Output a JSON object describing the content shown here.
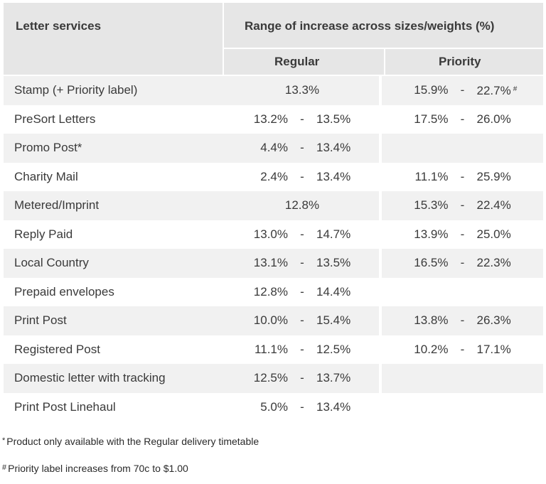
{
  "header": {
    "col1": "Letter services",
    "group": "Range of increase across sizes/weights (%)",
    "regular": "Regular",
    "priority": "Priority"
  },
  "rows": [
    {
      "name": "Stamp (+ Priority label)",
      "regular_single": "13.3%",
      "priority_lo": "15.9%",
      "priority_hi": "22.7%",
      "priority_mark": "#"
    },
    {
      "name": "PreSort Letters",
      "regular_lo": "13.2%",
      "regular_hi": "13.5%",
      "priority_lo": "17.5%",
      "priority_hi": "26.0%"
    },
    {
      "name": "Promo Post*",
      "regular_lo": "4.4%",
      "regular_hi": "13.4%"
    },
    {
      "name": "Charity Mail",
      "regular_lo": "2.4%",
      "regular_hi": "13.4%",
      "priority_lo": "11.1%",
      "priority_hi": "25.9%"
    },
    {
      "name": "Metered/Imprint",
      "regular_single": "12.8%",
      "priority_lo": "15.3%",
      "priority_hi": "22.4%"
    },
    {
      "name": "Reply Paid",
      "regular_lo": "13.0%",
      "regular_hi": "14.7%",
      "priority_lo": "13.9%",
      "priority_hi": "25.0%"
    },
    {
      "name": "Local Country",
      "regular_lo": "13.1%",
      "regular_hi": "13.5%",
      "priority_lo": "16.5%",
      "priority_hi": "22.3%"
    },
    {
      "name": "Prepaid envelopes",
      "regular_lo": "12.8%",
      "regular_hi": "14.4%"
    },
    {
      "name": "Print Post",
      "regular_lo": "10.0%",
      "regular_hi": "15.4%",
      "priority_lo": "13.8%",
      "priority_hi": "26.3%"
    },
    {
      "name": "Registered Post",
      "regular_lo": "11.1%",
      "regular_hi": "12.5%",
      "priority_lo": "10.2%",
      "priority_hi": "17.1%"
    },
    {
      "name": "Domestic letter with tracking",
      "regular_lo": "12.5%",
      "regular_hi": "13.7%"
    },
    {
      "name": "Print Post Linehaul",
      "regular_lo": "5.0%",
      "regular_hi": "13.4%"
    }
  ],
  "separator": "-",
  "notes": {
    "note1_mark": "*",
    "note1": "Product only available with the Regular delivery timetable",
    "note2_mark": "#",
    "note2": "Priority label increases from 70c to $1.00"
  }
}
